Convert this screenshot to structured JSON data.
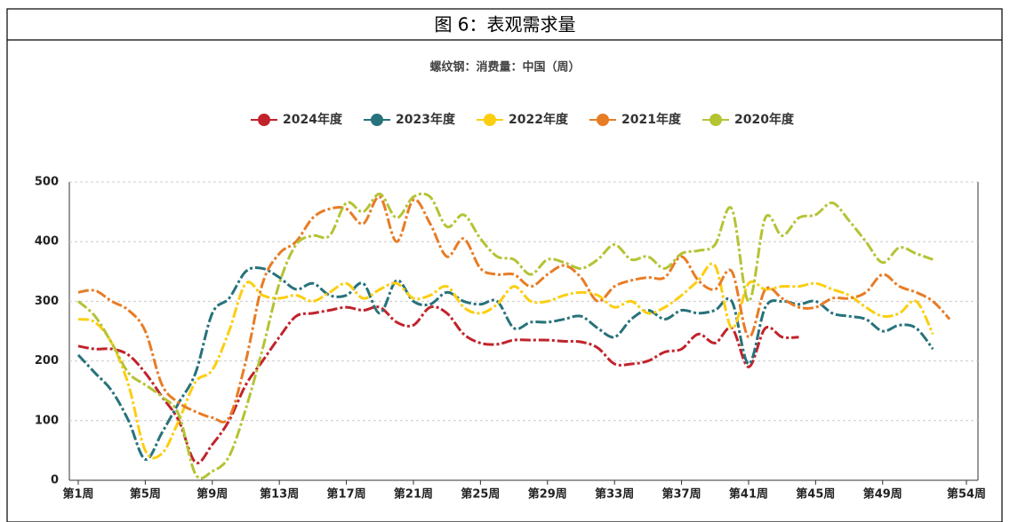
{
  "document_title": "图 6：表观需求量",
  "chart_data": {
    "type": "line",
    "title": "螺纹钢：消费量：中国（周）",
    "categories": [
      "第1周",
      null,
      null,
      null,
      "第5周",
      null,
      null,
      null,
      "第9周",
      null,
      null,
      null,
      "第13周",
      null,
      null,
      null,
      "第17周",
      null,
      null,
      null,
      "第21周",
      null,
      null,
      null,
      "第25周",
      null,
      null,
      null,
      "第29周",
      null,
      null,
      null,
      "第33周",
      null,
      null,
      null,
      "第37周",
      null,
      null,
      null,
      "第41周",
      null,
      null,
      null,
      "第45周",
      null,
      null,
      null,
      "第49周",
      null,
      null,
      null,
      null,
      "第54周"
    ],
    "ylim": [
      0,
      500
    ],
    "yticks": [
      0,
      100,
      200,
      300,
      400,
      500
    ],
    "grid": true,
    "series": [
      {
        "name": "2024年度",
        "color": "#c1232b",
        "values": [
          225,
          220,
          220,
          210,
          180,
          140,
          100,
          30,
          60,
          100,
          160,
          200,
          240,
          275,
          280,
          285,
          290,
          285,
          290,
          265,
          260,
          290,
          280,
          245,
          230,
          228,
          235,
          235,
          235,
          233,
          232,
          222,
          195,
          195,
          200,
          215,
          220,
          245,
          230,
          255,
          190,
          255,
          240,
          240,
          null,
          null,
          null,
          null,
          null,
          null,
          null,
          null,
          null,
          null
        ]
      },
      {
        "name": "2023年度",
        "color": "#27727b",
        "values": [
          210,
          180,
          150,
          100,
          35,
          80,
          130,
          180,
          280,
          305,
          350,
          355,
          340,
          320,
          330,
          310,
          310,
          330,
          280,
          335,
          300,
          295,
          315,
          300,
          295,
          300,
          255,
          265,
          265,
          270,
          275,
          255,
          240,
          270,
          285,
          270,
          285,
          280,
          285,
          300,
          195,
          290,
          300,
          295,
          300,
          280,
          275,
          270,
          250,
          260,
          255,
          220,
          null,
          null
        ]
      },
      {
        "name": "2022年度",
        "color": "#fcce10",
        "values": [
          270,
          265,
          230,
          160,
          50,
          45,
          100,
          165,
          185,
          250,
          330,
          310,
          305,
          310,
          300,
          315,
          330,
          305,
          320,
          330,
          305,
          310,
          325,
          290,
          280,
          295,
          325,
          300,
          300,
          310,
          315,
          310,
          290,
          300,
          280,
          290,
          310,
          335,
          360,
          255,
          330,
          320,
          325,
          325,
          330,
          320,
          310,
          290,
          275,
          280,
          300,
          245,
          null,
          null
        ]
      },
      {
        "name": "2021年度",
        "color": "#e87c25",
        "values": [
          315,
          318,
          300,
          285,
          250,
          160,
          130,
          115,
          105,
          105,
          200,
          330,
          380,
          400,
          440,
          455,
          455,
          430,
          475,
          400,
          470,
          430,
          375,
          405,
          355,
          345,
          345,
          325,
          345,
          360,
          340,
          300,
          325,
          335,
          340,
          340,
          375,
          335,
          320,
          350,
          240,
          320,
          305,
          290,
          290,
          305,
          305,
          315,
          345,
          325,
          315,
          300,
          270,
          null
        ]
      },
      {
        "name": "2020年度",
        "color": "#b5c334",
        "values": [
          300,
          275,
          230,
          180,
          160,
          140,
          110,
          10,
          15,
          40,
          120,
          220,
          330,
          395,
          410,
          410,
          465,
          450,
          480,
          440,
          475,
          475,
          425,
          445,
          405,
          375,
          370,
          345,
          370,
          365,
          355,
          370,
          395,
          370,
          375,
          355,
          380,
          385,
          395,
          455,
          300,
          440,
          410,
          440,
          445,
          465,
          435,
          400,
          365,
          390,
          380,
          370,
          null,
          null
        ]
      }
    ]
  }
}
